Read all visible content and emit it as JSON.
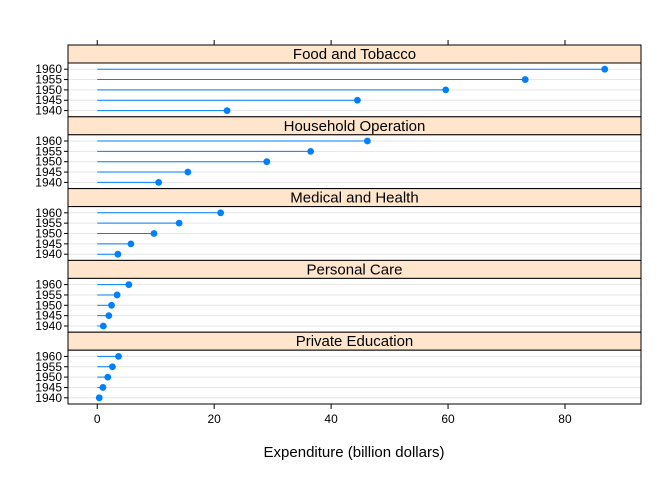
{
  "chart_data": {
    "type": "dotplot",
    "xlabel": "Expenditure (billion dollars)",
    "xlim": [
      -5,
      93
    ],
    "xticks": [
      0,
      20,
      40,
      60,
      80
    ],
    "categories": [
      "1960",
      "1955",
      "1950",
      "1945",
      "1940"
    ],
    "panels": [
      {
        "name": "Food and Tobacco",
        "values": [
          86.8,
          73.2,
          59.6,
          44.5,
          22.2
        ]
      },
      {
        "name": "Household Operation",
        "values": [
          46.2,
          36.5,
          29.0,
          15.5,
          10.5
        ]
      },
      {
        "name": "Medical and Health",
        "values": [
          21.1,
          14.0,
          9.71,
          5.76,
          3.53
        ]
      },
      {
        "name": "Personal Care",
        "values": [
          5.4,
          3.4,
          2.45,
          1.98,
          1.04
        ]
      },
      {
        "name": "Private Education",
        "values": [
          3.64,
          2.6,
          1.8,
          0.974,
          0.341
        ]
      }
    ],
    "grid": true,
    "colors": {
      "point": "#0080ff",
      "line": "#0080ff",
      "strip": "#ffe5cc",
      "grid": "#e6e6e6"
    }
  }
}
